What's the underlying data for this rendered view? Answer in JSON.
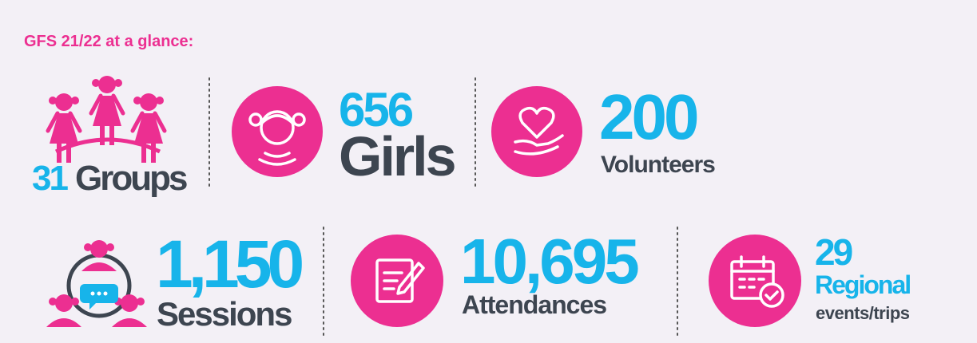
{
  "header": {
    "title": "GFS 21/22 at a glance:"
  },
  "stats": [
    {
      "value": "31",
      "label": "Groups"
    },
    {
      "value": "656",
      "label": "Girls"
    },
    {
      "value": "200",
      "label": "Volunteers"
    },
    {
      "value": "1,150",
      "label": "Sessions"
    },
    {
      "value": "10,695",
      "label": "Attendances"
    },
    {
      "value": "29",
      "label": "Regional",
      "sublabel": "events/trips"
    }
  ]
}
